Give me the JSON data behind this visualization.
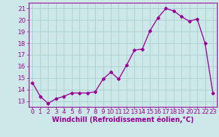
{
  "x": [
    0,
    1,
    2,
    3,
    4,
    5,
    6,
    7,
    8,
    9,
    10,
    11,
    12,
    13,
    14,
    15,
    16,
    17,
    18,
    19,
    20,
    21,
    22,
    23
  ],
  "y": [
    14.6,
    13.4,
    12.8,
    13.2,
    13.4,
    13.7,
    13.7,
    13.7,
    13.8,
    14.9,
    15.5,
    14.9,
    16.1,
    17.4,
    17.5,
    19.1,
    20.2,
    21.0,
    20.8,
    20.3,
    19.9,
    20.1,
    18.0,
    13.7
  ],
  "line_color": "#990099",
  "marker": "D",
  "marker_size": 2.2,
  "bg_color": "#cce8e8",
  "grid_color": "#aacccc",
  "xlabel": "Windchill (Refroidissement éolien,°C)",
  "xlabel_color": "#990099",
  "tick_color": "#990099",
  "ylim": [
    12.5,
    21.5
  ],
  "yticks": [
    13,
    14,
    15,
    16,
    17,
    18,
    19,
    20,
    21
  ],
  "xticks": [
    0,
    1,
    2,
    3,
    4,
    5,
    6,
    7,
    8,
    9,
    10,
    11,
    12,
    13,
    14,
    15,
    16,
    17,
    18,
    19,
    20,
    21,
    22,
    23
  ],
  "font_size": 6.5,
  "xlabel_font_size": 7.0,
  "line_width": 1.0
}
